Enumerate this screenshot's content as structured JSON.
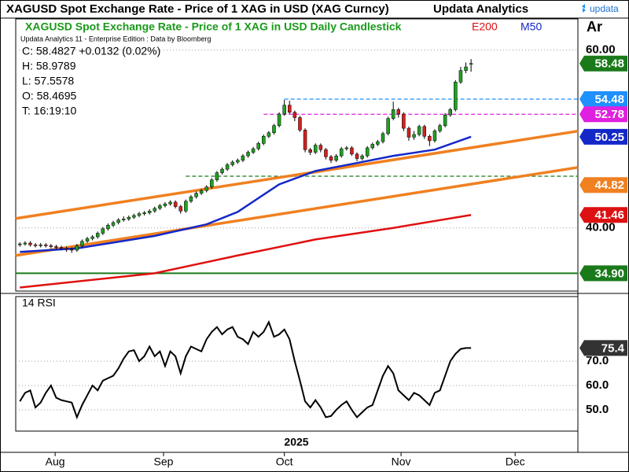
{
  "header": {
    "title": "XAGUSD Spot Exchange Rate - Price of 1 XAG in USD (XAG Curncy)",
    "brand": "Updata Analytics",
    "logo": "updata",
    "corner": "Ar"
  },
  "chart_data": [
    {
      "type": "candlestick",
      "title": "XAGUSD Spot Exchange Rate - Price of 1 XAG in USD Daily Candlestick",
      "source": "Updata Analytics 11 - Enterprise Edition : Data by Bloomberg",
      "info": [
        "C: 58.4827 +0.0132 (0.02%)",
        "H: 58.9789",
        "L: 57.5578",
        "O: 58.4695",
        "T: 16:19:10"
      ],
      "up_color": "#22a022",
      "down_color": "#d42020",
      "open": [
        38.1,
        38.2,
        38.3,
        38.1,
        38.0,
        38.1,
        38.0,
        37.9,
        37.8,
        37.7,
        37.6,
        37.5,
        38.0,
        38.5,
        38.8,
        39.0,
        39.4,
        39.9,
        40.3,
        40.6,
        40.9,
        41.0,
        41.2,
        41.4,
        41.6,
        41.7,
        41.9,
        42.2,
        42.5,
        42.7,
        42.9,
        42.4,
        41.9,
        43.0,
        43.5,
        43.9,
        44.2,
        44.6,
        45.4,
        46.2,
        46.6,
        47.1,
        47.4,
        47.6,
        48.1,
        48.5,
        48.9,
        49.5,
        50.3,
        50.7,
        51.5,
        52.8,
        53.8,
        53.0,
        52.4,
        51.0,
        48.8,
        48.5,
        49.3,
        48.8,
        48.0,
        47.6,
        48.1,
        48.9,
        49.0,
        48.3,
        47.8,
        48.1,
        49.0,
        49.4,
        49.7,
        50.6,
        52.3,
        53.3,
        52.8,
        51.2,
        50.2,
        50.5,
        51.4,
        50.3,
        49.8,
        50.9,
        51.5,
        52.7,
        53.3,
        56.4,
        57.7,
        58.4695
      ],
      "high": [
        38.4,
        38.5,
        38.5,
        38.3,
        38.3,
        38.3,
        38.2,
        38.1,
        38.0,
        37.9,
        37.8,
        38.2,
        38.7,
        39.0,
        39.2,
        39.6,
        40.1,
        40.5,
        40.8,
        41.1,
        41.3,
        41.4,
        41.6,
        41.8,
        41.9,
        42.1,
        42.4,
        42.7,
        42.9,
        43.1,
        43.1,
        42.6,
        43.2,
        43.7,
        44.1,
        44.4,
        44.8,
        45.6,
        46.4,
        46.8,
        47.3,
        47.6,
        47.8,
        48.3,
        48.7,
        49.1,
        49.7,
        50.5,
        50.9,
        51.7,
        53.0,
        54.4,
        54.3,
        53.2,
        52.6,
        51.2,
        49.0,
        49.5,
        49.5,
        49.0,
        48.2,
        48.3,
        49.1,
        49.2,
        49.2,
        48.5,
        48.3,
        49.2,
        49.6,
        49.9,
        50.8,
        52.5,
        54.2,
        53.5,
        53.0,
        51.4,
        50.9,
        51.6,
        51.6,
        50.5,
        51.1,
        51.7,
        52.9,
        53.5,
        56.6,
        58.1,
        58.6,
        58.9789
      ],
      "low": [
        37.9,
        38.0,
        37.9,
        37.8,
        37.8,
        37.8,
        37.7,
        37.6,
        37.5,
        37.3,
        37.2,
        37.3,
        37.8,
        38.3,
        38.6,
        38.8,
        39.2,
        39.7,
        40.1,
        40.4,
        40.7,
        40.8,
        41.0,
        41.2,
        41.4,
        41.5,
        41.7,
        42.0,
        42.3,
        42.5,
        42.2,
        41.6,
        41.7,
        42.8,
        43.3,
        43.7,
        44.0,
        44.4,
        45.2,
        46.0,
        46.4,
        46.9,
        47.2,
        47.4,
        47.9,
        48.3,
        48.7,
        49.3,
        50.1,
        50.5,
        51.3,
        52.6,
        52.8,
        52.0,
        50.8,
        48.5,
        48.2,
        48.3,
        48.5,
        47.7,
        47.3,
        47.4,
        47.9,
        48.7,
        48.1,
        47.5,
        47.6,
        47.9,
        48.8,
        49.2,
        49.5,
        50.4,
        52.1,
        52.4,
        50.9,
        49.8,
        49.9,
        50.3,
        50.0,
        49.2,
        49.6,
        50.7,
        51.3,
        52.5,
        53.1,
        56.2,
        57.4,
        57.5578
      ],
      "close": [
        38.2,
        38.3,
        38.1,
        38.0,
        38.1,
        38.0,
        37.9,
        37.8,
        37.7,
        37.6,
        37.5,
        38.0,
        38.5,
        38.8,
        39.0,
        39.4,
        39.9,
        40.3,
        40.6,
        40.9,
        41.0,
        41.2,
        41.4,
        41.6,
        41.7,
        41.9,
        42.2,
        42.5,
        42.7,
        42.9,
        42.4,
        41.9,
        43.0,
        43.5,
        43.9,
        44.2,
        44.6,
        45.4,
        46.2,
        46.6,
        47.1,
        47.4,
        47.6,
        48.1,
        48.5,
        48.9,
        49.5,
        50.3,
        50.7,
        51.5,
        52.8,
        53.8,
        53.0,
        52.4,
        51.0,
        48.8,
        48.5,
        49.3,
        48.8,
        48.0,
        47.6,
        48.1,
        48.9,
        49.0,
        48.3,
        47.8,
        48.1,
        49.0,
        49.4,
        49.7,
        50.6,
        52.3,
        53.3,
        52.8,
        51.2,
        50.2,
        50.5,
        51.4,
        50.3,
        49.8,
        50.9,
        51.5,
        52.7,
        53.3,
        56.4,
        57.7,
        58.1,
        58.4827
      ],
      "xlim": [
        -0.8,
        107.6
      ],
      "ylim": [
        32.9,
        63.5
      ],
      "yticks": [
        {
          "value": 60,
          "label": "60.00"
        },
        {
          "value": 40,
          "label": "40.00"
        }
      ],
      "grid": true,
      "series": [
        {
          "name": "E200",
          "color": "#e01010",
          "x": [
            0,
            26,
            42,
            57,
            72,
            87
          ],
          "values": [
            33.3,
            34.9,
            36.9,
            38.7,
            40.0,
            41.46
          ]
        },
        {
          "name": "M50",
          "color": "#1428c8",
          "x": [
            0,
            11,
            26,
            36,
            42,
            50,
            57,
            65,
            72,
            80,
            87
          ],
          "values": [
            37.3,
            37.7,
            39.1,
            40.4,
            41.8,
            44.9,
            46.4,
            47.3,
            48.1,
            48.8,
            50.25
          ]
        }
      ],
      "trend_lines": [
        {
          "color": "#f08020",
          "x": [
            -0.8,
            107.6
          ],
          "values": [
            41.06,
            50.88
          ]
        },
        {
          "color": "#f08020",
          "x": [
            -0.8,
            107.6
          ],
          "values": [
            36.9,
            46.8
          ]
        }
      ],
      "levels": [
        {
          "value": 54.48,
          "color": "#1e90ff",
          "dashed": true,
          "x_start": 51
        },
        {
          "value": 52.78,
          "color": "#e020e0",
          "dashed": true,
          "x_start": 47
        },
        {
          "value": 45.81,
          "color": "#1a7a1a",
          "dashed": true,
          "x_start": 32
        },
        {
          "value": 34.9,
          "color": "#1a7a1a",
          "dashed": false,
          "x_start": -0.8
        }
      ],
      "price_tags": {
        "values": [
          58.48,
          54.48,
          52.78,
          50.25,
          44.82,
          41.46,
          34.9
        ],
        "value_labels": [
          "58.48",
          "54.48",
          "52.78",
          "50.25",
          "44.82",
          "41.46",
          "34.90"
        ],
        "colors": [
          "#1a7a1a",
          "#1e90ff",
          "#e020e0",
          "#1428c8",
          "#f08020",
          "#dd1111",
          "#1a7a1a"
        ]
      }
    },
    {
      "type": "line",
      "title": "14 RSI",
      "color": "#000000",
      "values": [
        53.5,
        57,
        58,
        51,
        53,
        57,
        60,
        55,
        54,
        53.5,
        53,
        47,
        52,
        56,
        60,
        58,
        62,
        63,
        64,
        67,
        71,
        74,
        74.5,
        70,
        72,
        76,
        72,
        74,
        68,
        74,
        72,
        65,
        72,
        76,
        75,
        74,
        79,
        82,
        84,
        81,
        83,
        84,
        80,
        79,
        77,
        82,
        80,
        82,
        86,
        80,
        81,
        83,
        79,
        70,
        62,
        53.5,
        51,
        54,
        51,
        47,
        47.5,
        50,
        52,
        53.5,
        50,
        47,
        49,
        51,
        52,
        58,
        64,
        68,
        65,
        58,
        56,
        54,
        57,
        56,
        54,
        52,
        57,
        58,
        64,
        70,
        73,
        75,
        75.4,
        75.4
      ],
      "xlim": [
        -0.8,
        107.6
      ],
      "ylim": [
        41.3,
        96.5
      ],
      "yticks": [
        {
          "value": 50,
          "label": "50.0"
        },
        {
          "value": 60,
          "label": "60.0"
        },
        {
          "value": 70,
          "label": "70.0"
        }
      ],
      "grid": true,
      "price_tags": {
        "values": [
          75.4
        ],
        "colors": [
          "#333333"
        ]
      },
      "x_label": "2025",
      "xticks": [
        {
          "value": 6.8,
          "label": "Aug"
        },
        {
          "value": 27.7,
          "label": "Sep"
        },
        {
          "value": 51,
          "label": "Oct"
        },
        {
          "value": 73.5,
          "label": "Nov"
        },
        {
          "value": 95.5,
          "label": "Dec"
        }
      ]
    }
  ]
}
